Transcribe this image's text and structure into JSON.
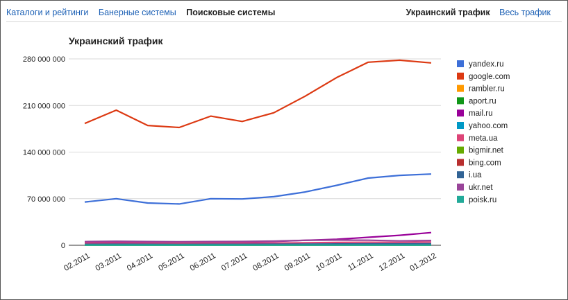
{
  "nav": {
    "left_tabs": [
      "Каталоги и рейтинги",
      "Банерные системы",
      "Поисковые системы"
    ],
    "active_left_index": 2,
    "right_tabs": [
      "Украинский трафик",
      "Весь трафик"
    ],
    "active_right_index": 0
  },
  "chart_data": {
    "type": "line",
    "title": "Украинский трафик",
    "xlabel": "",
    "ylabel": "",
    "categories": [
      "02.2011",
      "03.2011",
      "04.2011",
      "05.2011",
      "06.2011",
      "07.2011",
      "08.2011",
      "09.2011",
      "10.2011",
      "11.2011",
      "12.2011",
      "01.2012"
    ],
    "ylim": [
      0,
      280000000
    ],
    "yticks": [
      0,
      70000000,
      140000000,
      210000000,
      280000000
    ],
    "ytick_labels": [
      "0",
      "70 000 000",
      "140 000 000",
      "210 000 000",
      "280 000 000"
    ],
    "grid": true,
    "legend_position": "right",
    "series": [
      {
        "name": "yandex.ru",
        "color": "#3d6fd8",
        "values": [
          65000000,
          70000000,
          63500000,
          62000000,
          70000000,
          69500000,
          73000000,
          80000000,
          90000000,
          101000000,
          105000000,
          107000000
        ]
      },
      {
        "name": "google.com",
        "color": "#dc3912",
        "values": [
          183000000,
          203000000,
          180000000,
          177000000,
          194000000,
          186000000,
          199000000,
          224000000,
          252000000,
          275000000,
          278000000,
          274000000
        ]
      },
      {
        "name": "rambler.ru",
        "color": "#ff9900",
        "values": [
          1200000,
          1300000,
          1200000,
          1100000,
          1200000,
          1200000,
          1300000,
          1300000,
          1400000,
          1400000,
          1400000,
          1500000
        ]
      },
      {
        "name": "aport.ru",
        "color": "#109618",
        "values": [
          200000,
          200000,
          200000,
          200000,
          200000,
          200000,
          200000,
          200000,
          200000,
          200000,
          200000,
          200000
        ]
      },
      {
        "name": "mail.ru",
        "color": "#990099",
        "values": [
          4500000,
          5000000,
          4600000,
          4300000,
          4800000,
          4900000,
          5800000,
          7500000,
          9000000,
          12000000,
          15000000,
          19000000
        ]
      },
      {
        "name": "yahoo.com",
        "color": "#0099c6",
        "values": [
          600000,
          700000,
          600000,
          600000,
          600000,
          600000,
          700000,
          700000,
          800000,
          800000,
          800000,
          900000
        ]
      },
      {
        "name": "meta.ua",
        "color": "#dd4477",
        "values": [
          3000000,
          3200000,
          3000000,
          2900000,
          3100000,
          3100000,
          3300000,
          3800000,
          4300000,
          4600000,
          4400000,
          4800000
        ]
      },
      {
        "name": "bigmir.net",
        "color": "#66aa00",
        "values": [
          1000000,
          1100000,
          1000000,
          1000000,
          1000000,
          1000000,
          1100000,
          1200000,
          1300000,
          1300000,
          1300000,
          1400000
        ]
      },
      {
        "name": "bing.com",
        "color": "#b82e2e",
        "values": [
          800000,
          900000,
          800000,
          800000,
          800000,
          800000,
          900000,
          1000000,
          1000000,
          1100000,
          1100000,
          1200000
        ]
      },
      {
        "name": "i.ua",
        "color": "#316395",
        "values": [
          1500000,
          1600000,
          1500000,
          1400000,
          1500000,
          1500000,
          1600000,
          1800000,
          2000000,
          2100000,
          2100000,
          2200000
        ]
      },
      {
        "name": "ukr.net",
        "color": "#994499",
        "values": [
          5500000,
          6000000,
          5600000,
          5300000,
          5600000,
          5700000,
          6200000,
          7500000,
          7800000,
          7600000,
          6600000,
          7200000
        ]
      },
      {
        "name": "poisk.ru",
        "color": "#22aa99",
        "values": [
          300000,
          300000,
          300000,
          300000,
          300000,
          300000,
          300000,
          300000,
          300000,
          300000,
          300000,
          300000
        ]
      }
    ]
  }
}
